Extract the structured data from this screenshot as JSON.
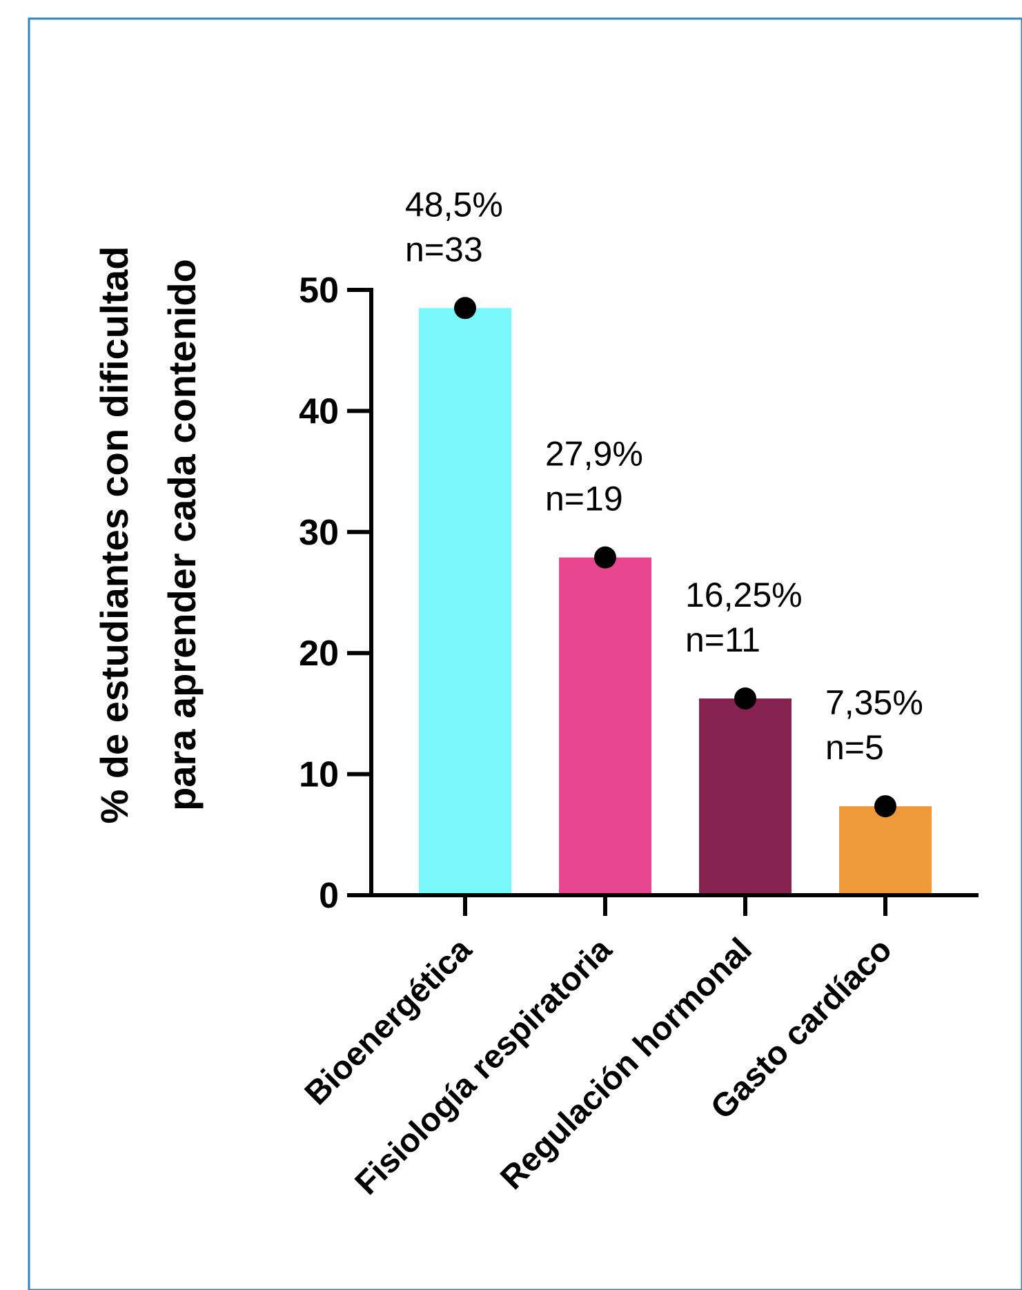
{
  "chart_data": {
    "type": "bar",
    "ylabel": [
      "% de estudiantes con dificultad",
      "para aprender cada contenido"
    ],
    "xlabel": "",
    "ylim": [
      0,
      50
    ],
    "yticks": [
      0,
      10,
      20,
      30,
      40,
      50
    ],
    "yticks_text": [
      "0",
      "10",
      "20",
      "30",
      "40",
      "50"
    ],
    "categories": [
      "Bioenergética",
      "Fisiología respiratoria",
      "Regulación hormonal",
      "Gasto cardíaco"
    ],
    "values": [
      48.5,
      27.9,
      16.25,
      7.35
    ],
    "value_labels": [
      "48,5%",
      "27,9%",
      "16,25%",
      "7,35%"
    ],
    "n_labels": [
      "n=33",
      "n=19",
      "n=11",
      "n=5"
    ],
    "colors": [
      "#79F8FB",
      "#E8468E",
      "#86224F",
      "#EF9A3A"
    ],
    "marker_color": "#000000",
    "frame_color": "#2E86C1",
    "legend": "none",
    "grid": false
  }
}
